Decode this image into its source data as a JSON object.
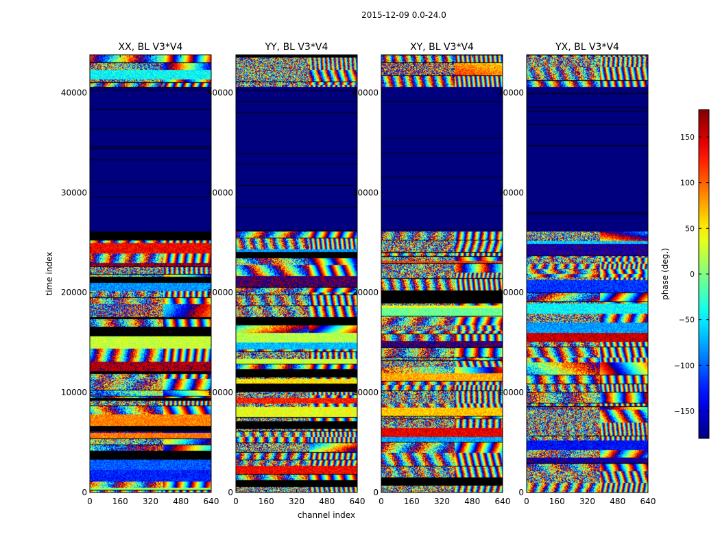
{
  "figure_title": "2015-12-09 0.0-24.0",
  "chart_data": {
    "type": "heatmap",
    "suptitle": "2015-12-09 0.0-24.0",
    "xlabel": "channel index",
    "ylabel": "time index",
    "xlim": [
      0,
      640
    ],
    "ylim": [
      0,
      43800
    ],
    "xticks": [
      0,
      160,
      320,
      480,
      640
    ],
    "yticks": [
      0,
      10000,
      20000,
      30000,
      40000
    ],
    "masked_time_range": [
      26100,
      40600
    ],
    "panels": [
      {
        "title": "XX, BL V3*V4",
        "pol": "XX",
        "seed": 11
      },
      {
        "title": "YY, BL V3*V4",
        "pol": "YY",
        "seed": 23
      },
      {
        "title": "XY, BL V3*V4",
        "pol": "XY",
        "seed": 37
      },
      {
        "title": "YX, BL V3*V4",
        "pol": "YX",
        "seed": 53
      }
    ],
    "colorbar": {
      "label": "phase (deg.)",
      "range": [
        -180,
        180
      ],
      "ticks": [
        -150,
        -100,
        -50,
        0,
        50,
        100,
        150
      ],
      "colormap": "jet",
      "masked_color": "#00007f"
    }
  }
}
